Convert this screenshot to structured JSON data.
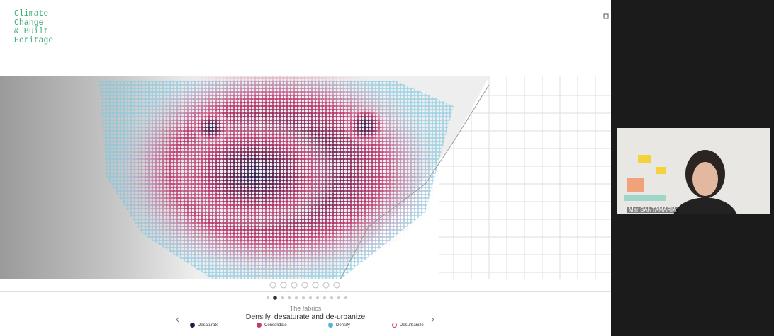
{
  "slide": {
    "logo": [
      "Climate",
      "Change",
      "& Built",
      "Heritage"
    ],
    "caption": {
      "kicker": "The fabrics",
      "title": "Densify, desaturate and de-urbanize"
    },
    "legend": [
      "Desaturate",
      "Consolidate",
      "Densify",
      "Desurbanize"
    ]
  },
  "participant": {
    "name": "Mar SANTAMARIA"
  }
}
